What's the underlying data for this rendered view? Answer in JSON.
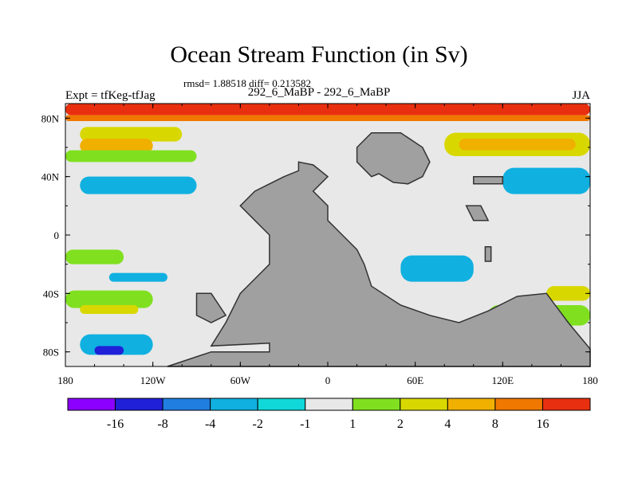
{
  "chart_data": {
    "type": "heatmap",
    "title": "Ocean Stream Function (in Sv)",
    "subtitle": "rmsd= 1.88518 diff= 0.213582",
    "case_label": "292_6_MaBP - 292_6_MaBP",
    "left_label": "Expt = tfKeg-tfJag",
    "right_label": "JJA",
    "x_ticks": [
      "180",
      "120W",
      "60W",
      "0",
      "60E",
      "120E",
      "180"
    ],
    "x_tick_values": [
      -180,
      -120,
      -60,
      0,
      60,
      120,
      180
    ],
    "y_ticks": [
      "80N",
      "40N",
      "0",
      "40S",
      "80S"
    ],
    "y_tick_values": [
      80,
      40,
      0,
      -40,
      -80
    ],
    "xlim": [
      -180,
      180
    ],
    "ylim": [
      -90,
      90
    ],
    "colorbar": {
      "labels": [
        "-16",
        "-8",
        "-4",
        "-2",
        "-1",
        "1",
        "2",
        "4",
        "8",
        "16"
      ],
      "colors": [
        "#8b00ff",
        "#2020d8",
        "#1f7ee0",
        "#10b0e0",
        "#10d8d8",
        "#e8e8e8",
        "#80e020",
        "#d8d800",
        "#f0b000",
        "#f07800",
        "#e83010"
      ]
    },
    "land_color": "#a0a0a0",
    "regions": [
      {
        "label": "16",
        "color": "#e83010",
        "lon": [
          -180,
          180
        ],
        "lat": [
          82,
          90
        ]
      },
      {
        "label": "8",
        "color": "#f07800",
        "lon": [
          -180,
          180
        ],
        "lat": [
          78,
          82
        ]
      },
      {
        "label": "4",
        "color": "#d8d800",
        "lon": [
          -170,
          -100
        ],
        "lat": [
          64,
          74
        ]
      },
      {
        "label": "8",
        "color": "#f0b000",
        "lon": [
          -170,
          -120
        ],
        "lat": [
          56,
          66
        ]
      },
      {
        "label": "2",
        "color": "#80e020",
        "lon": [
          -180,
          -90
        ],
        "lat": [
          50,
          58
        ]
      },
      {
        "label": "4",
        "color": "#d8d800",
        "lon": [
          80,
          180
        ],
        "lat": [
          54,
          70
        ]
      },
      {
        "label": "8",
        "color": "#f0b000",
        "lon": [
          90,
          170
        ],
        "lat": [
          58,
          66
        ]
      },
      {
        "label": "-2",
        "color": "#10b0e0",
        "lon": [
          120,
          180
        ],
        "lat": [
          28,
          46
        ]
      },
      {
        "label": "-2",
        "color": "#10b0e0",
        "lon": [
          -170,
          -90
        ],
        "lat": [
          28,
          40
        ]
      },
      {
        "label": "2",
        "color": "#80e020",
        "lon": [
          -180,
          -140
        ],
        "lat": [
          -20,
          -10
        ]
      },
      {
        "label": "-2",
        "color": "#10b0e0",
        "lon": [
          -150,
          -110
        ],
        "lat": [
          -32,
          -26
        ]
      },
      {
        "label": "2",
        "color": "#80e020",
        "lon": [
          -180,
          -120
        ],
        "lat": [
          -50,
          -38
        ]
      },
      {
        "label": "4",
        "color": "#d8d800",
        "lon": [
          -170,
          -130
        ],
        "lat": [
          -54,
          -48
        ]
      },
      {
        "label": "-2",
        "color": "#10b0e0",
        "lon": [
          -170,
          -120
        ],
        "lat": [
          -82,
          -68
        ]
      },
      {
        "label": "-8",
        "color": "#2020d8",
        "lon": [
          -160,
          -140
        ],
        "lat": [
          -82,
          -76
        ]
      },
      {
        "label": "-2",
        "color": "#10b0e0",
        "lon": [
          50,
          100
        ],
        "lat": [
          -32,
          -14
        ]
      },
      {
        "label": "2",
        "color": "#80e020",
        "lon": [
          110,
          180
        ],
        "lat": [
          -62,
          -48
        ]
      },
      {
        "label": "4",
        "color": "#d8d800",
        "lon": [
          150,
          180
        ],
        "lat": [
          -45,
          -35
        ]
      }
    ]
  }
}
